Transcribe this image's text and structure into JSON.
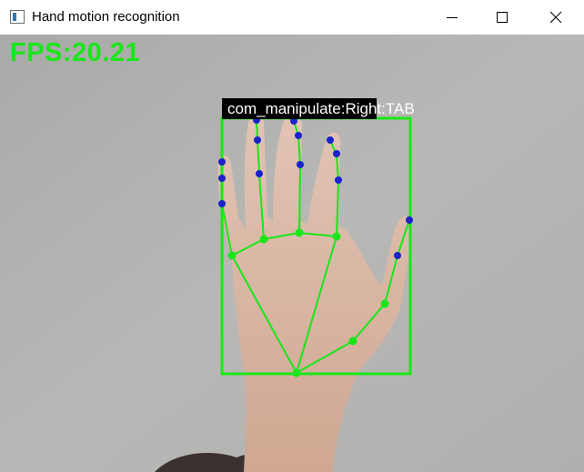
{
  "window": {
    "title": "Hand motion recognition",
    "controls": [
      "minimize-icon",
      "maximize-icon",
      "close-icon"
    ]
  },
  "overlay": {
    "fps_label": "FPS:20.21",
    "detection_label": "com_manipulate:Right:TAB",
    "box_color": "#19e619",
    "skeleton_color": "#19e619",
    "joint_color": "#19e619",
    "fingertip_marker_color": "#1a22c8"
  },
  "colors": {
    "titlebar": "#ffffff",
    "background_wall": "#b3b3b1",
    "skin": "#d9b8a6"
  }
}
